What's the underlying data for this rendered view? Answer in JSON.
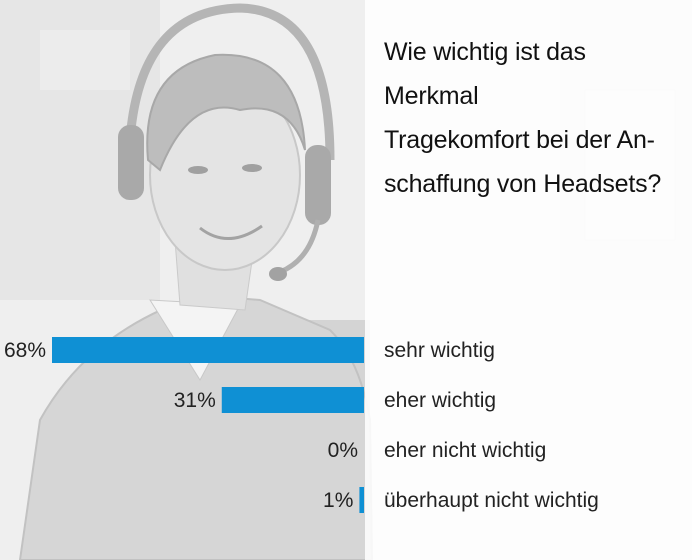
{
  "colors": {
    "bar": "#0f90d4",
    "text": "#222222"
  },
  "chart_data": {
    "type": "bar",
    "orientation": "horizontal",
    "title": "Wie wichtig ist das Merkmal Tragekomfort bei der Anschaffung von Headsets?",
    "title_lines": [
      "Wie wichtig ist das Merkmal",
      "Tragekomfort bei der An-",
      "schaffung von Headsets?"
    ],
    "categories": [
      "sehr wichtig",
      "eher wichtig",
      "eher nicht wichtig",
      "überhaupt nicht wichtig"
    ],
    "values": [
      68,
      31,
      0,
      1
    ],
    "value_labels": [
      "68%",
      "31%",
      "0%",
      "1%"
    ],
    "unit": "%",
    "xlim": [
      0,
      68
    ],
    "grid": false,
    "legend": "none"
  }
}
